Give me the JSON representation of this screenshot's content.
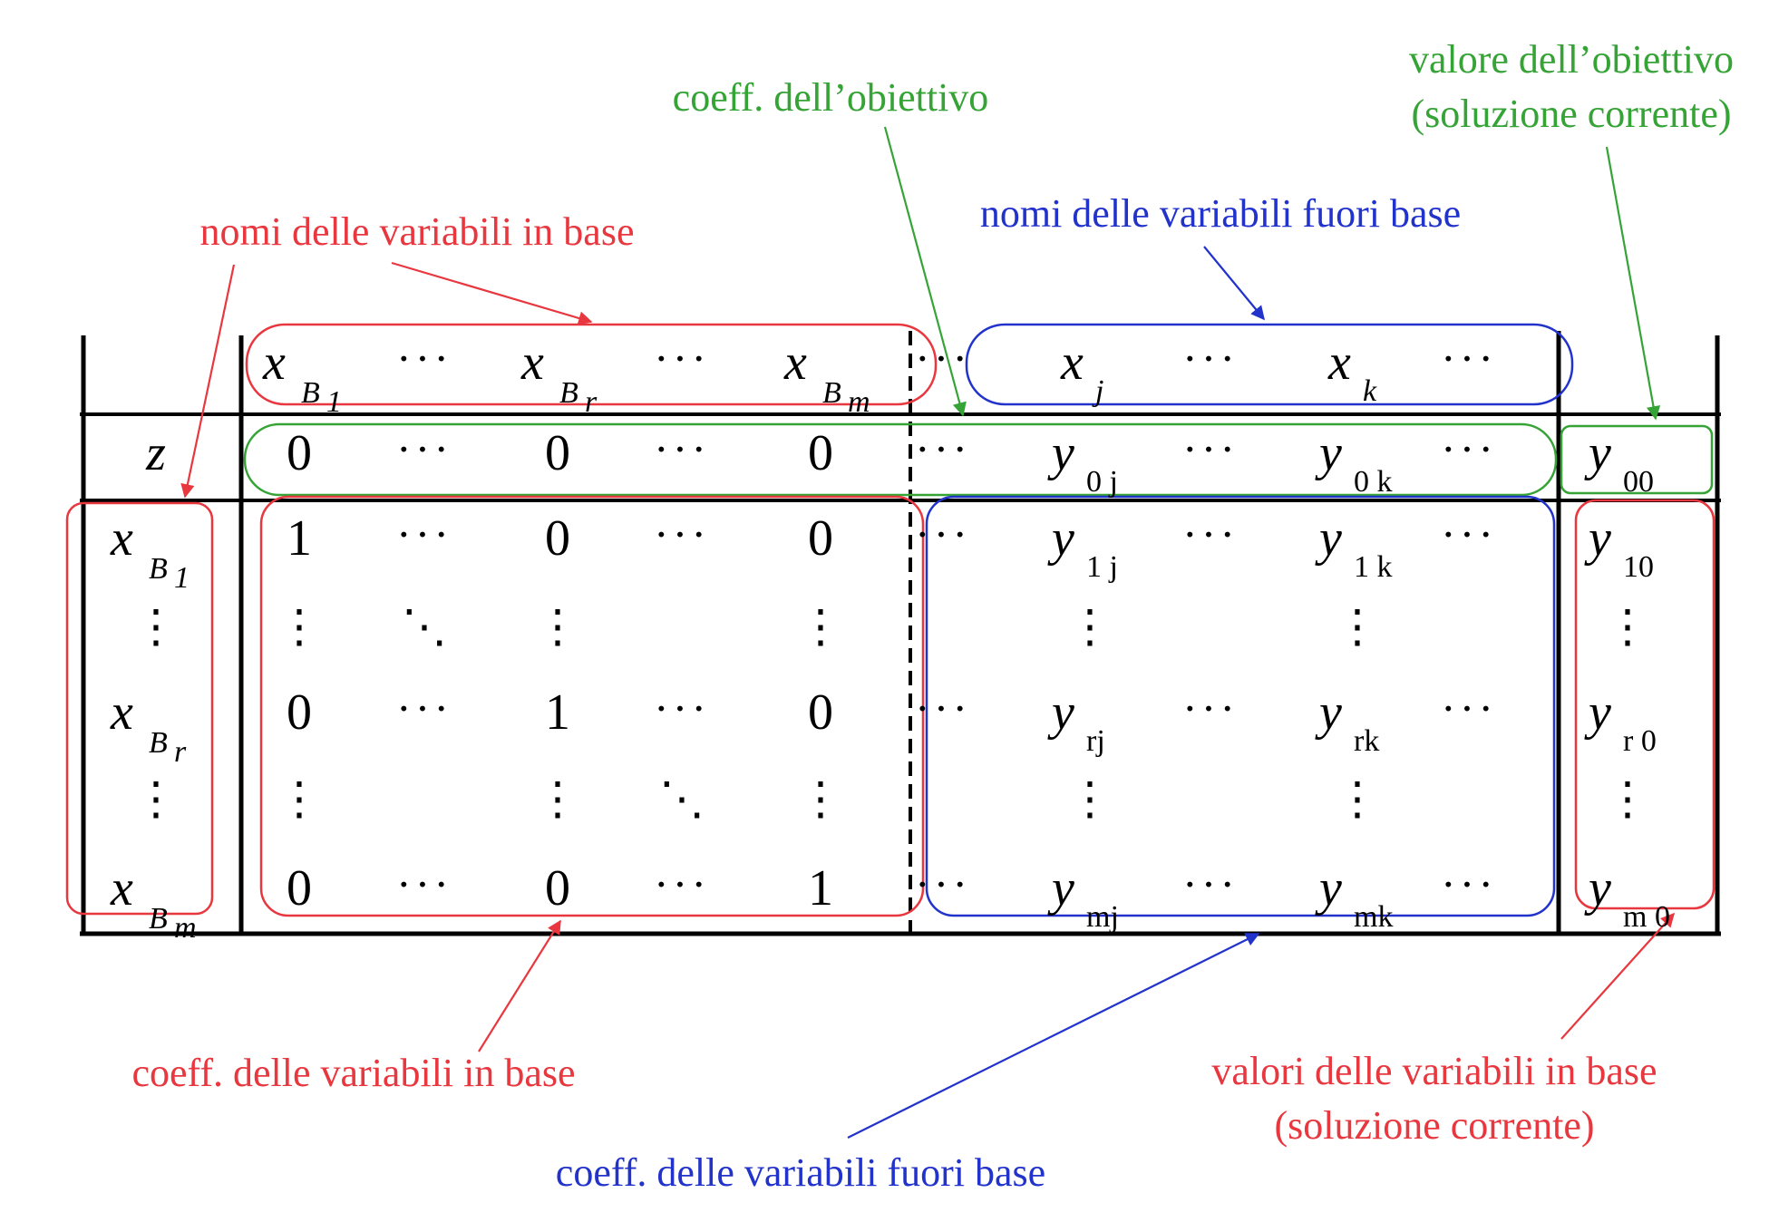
{
  "annotations": {
    "obj_coeff": "coeff. dell’obiettivo",
    "obj_value_line1": "valore dell’obiettivo",
    "obj_value_line2": "(soluzione corrente)",
    "basic_names": "nomi delle variabili in base",
    "nonbasic_names": "nomi delle variabili fuori base",
    "basic_coeff": "coeff. delle variabili in base",
    "nonbasic_coeff": "coeff. delle variabili fuori base",
    "basic_values_line1": "valori delle variabili in base",
    "basic_values_line2": "(soluzione corrente)"
  },
  "colors": {
    "red": "#e8373f",
    "green": "#36a336",
    "blue": "#2233cc",
    "ink": "#000000"
  },
  "symbols": {
    "x": "x",
    "y": "y",
    "z": "z",
    "B": "B",
    "hdots": "···",
    "vdots": "⋮",
    "ddots": "⋱"
  },
  "tableau": {
    "header": {
      "basic_subs": [
        "1",
        "r",
        "m"
      ],
      "nonbasic_subs": [
        "j",
        "k"
      ]
    },
    "objective_row": {
      "basic": [
        "0",
        "0",
        "0"
      ],
      "nonbasic_subs": [
        "0 j",
        "0 k"
      ],
      "rhs_sub": "00"
    },
    "rows": [
      {
        "basis_sub": "1",
        "basic": [
          "1",
          "0",
          "0"
        ],
        "nonbasic_subs": [
          "1 j",
          "1 k"
        ],
        "rhs_sub": "10"
      },
      {
        "basis_sub": "r",
        "basic": [
          "0",
          "1",
          "0"
        ],
        "nonbasic_subs": [
          "rj",
          "rk"
        ],
        "rhs_sub": "r 0"
      },
      {
        "basis_sub": "m",
        "basic": [
          "0",
          "0",
          "1"
        ],
        "nonbasic_subs": [
          "mj",
          "mk"
        ],
        "rhs_sub": "m 0"
      }
    ]
  }
}
